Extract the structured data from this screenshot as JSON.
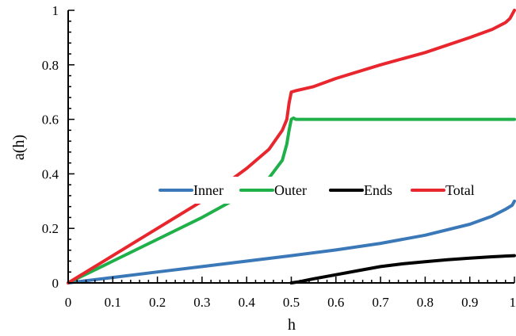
{
  "chart_data": {
    "type": "line",
    "title": "",
    "xlabel": "h",
    "ylabel": "a(h)",
    "xlim": [
      0,
      1
    ],
    "ylim": [
      0,
      1
    ],
    "grid": false,
    "legend_position": "center",
    "x_ticks": [
      "0",
      "0.1",
      "0.2",
      "0.3",
      "0.4",
      "0.5",
      "0.6",
      "0.7",
      "0.8",
      "0.9",
      "1"
    ],
    "y_ticks": [
      "0",
      "0.2",
      "0.4",
      "0.6",
      "0.8",
      "1"
    ],
    "series": [
      {
        "name": "Inner",
        "color": "#3a78b8",
        "points": [
          [
            0,
            0
          ],
          [
            0.1,
            0.02
          ],
          [
            0.2,
            0.04
          ],
          [
            0.3,
            0.06
          ],
          [
            0.4,
            0.08
          ],
          [
            0.5,
            0.1
          ],
          [
            0.6,
            0.121
          ],
          [
            0.7,
            0.145
          ],
          [
            0.8,
            0.175
          ],
          [
            0.9,
            0.215
          ],
          [
            0.95,
            0.245
          ],
          [
            0.98,
            0.27
          ],
          [
            0.995,
            0.285
          ],
          [
            1,
            0.3
          ]
        ]
      },
      {
        "name": "Outer",
        "color": "#1fb04a",
        "points": [
          [
            0,
            0
          ],
          [
            0.1,
            0.08
          ],
          [
            0.2,
            0.16
          ],
          [
            0.3,
            0.24
          ],
          [
            0.4,
            0.33
          ],
          [
            0.45,
            0.385
          ],
          [
            0.48,
            0.45
          ],
          [
            0.49,
            0.51
          ],
          [
            0.495,
            0.56
          ],
          [
            0.5,
            0.6
          ],
          [
            0.505,
            0.605
          ],
          [
            0.51,
            0.6
          ],
          [
            0.6,
            0.6
          ],
          [
            0.7,
            0.6
          ],
          [
            0.8,
            0.6
          ],
          [
            0.9,
            0.6
          ],
          [
            1,
            0.6
          ]
        ]
      },
      {
        "name": "Ends",
        "color": "#000000",
        "points": [
          [
            0.5,
            0
          ],
          [
            0.52,
            0.005
          ],
          [
            0.55,
            0.015
          ],
          [
            0.6,
            0.03
          ],
          [
            0.65,
            0.045
          ],
          [
            0.7,
            0.06
          ],
          [
            0.75,
            0.07
          ],
          [
            0.8,
            0.078
          ],
          [
            0.85,
            0.085
          ],
          [
            0.9,
            0.091
          ],
          [
            0.95,
            0.096
          ],
          [
            1,
            0.1
          ]
        ]
      },
      {
        "name": "Total",
        "color": "#e8262d",
        "points": [
          [
            0,
            0
          ],
          [
            0.1,
            0.1
          ],
          [
            0.2,
            0.2
          ],
          [
            0.3,
            0.3
          ],
          [
            0.4,
            0.42
          ],
          [
            0.45,
            0.49
          ],
          [
            0.48,
            0.56
          ],
          [
            0.49,
            0.6
          ],
          [
            0.495,
            0.66
          ],
          [
            0.5,
            0.7
          ],
          [
            0.51,
            0.705
          ],
          [
            0.55,
            0.72
          ],
          [
            0.6,
            0.75
          ],
          [
            0.7,
            0.8
          ],
          [
            0.8,
            0.845
          ],
          [
            0.9,
            0.9
          ],
          [
            0.95,
            0.93
          ],
          [
            0.98,
            0.955
          ],
          [
            0.99,
            0.97
          ],
          [
            1,
            1
          ]
        ]
      }
    ]
  }
}
